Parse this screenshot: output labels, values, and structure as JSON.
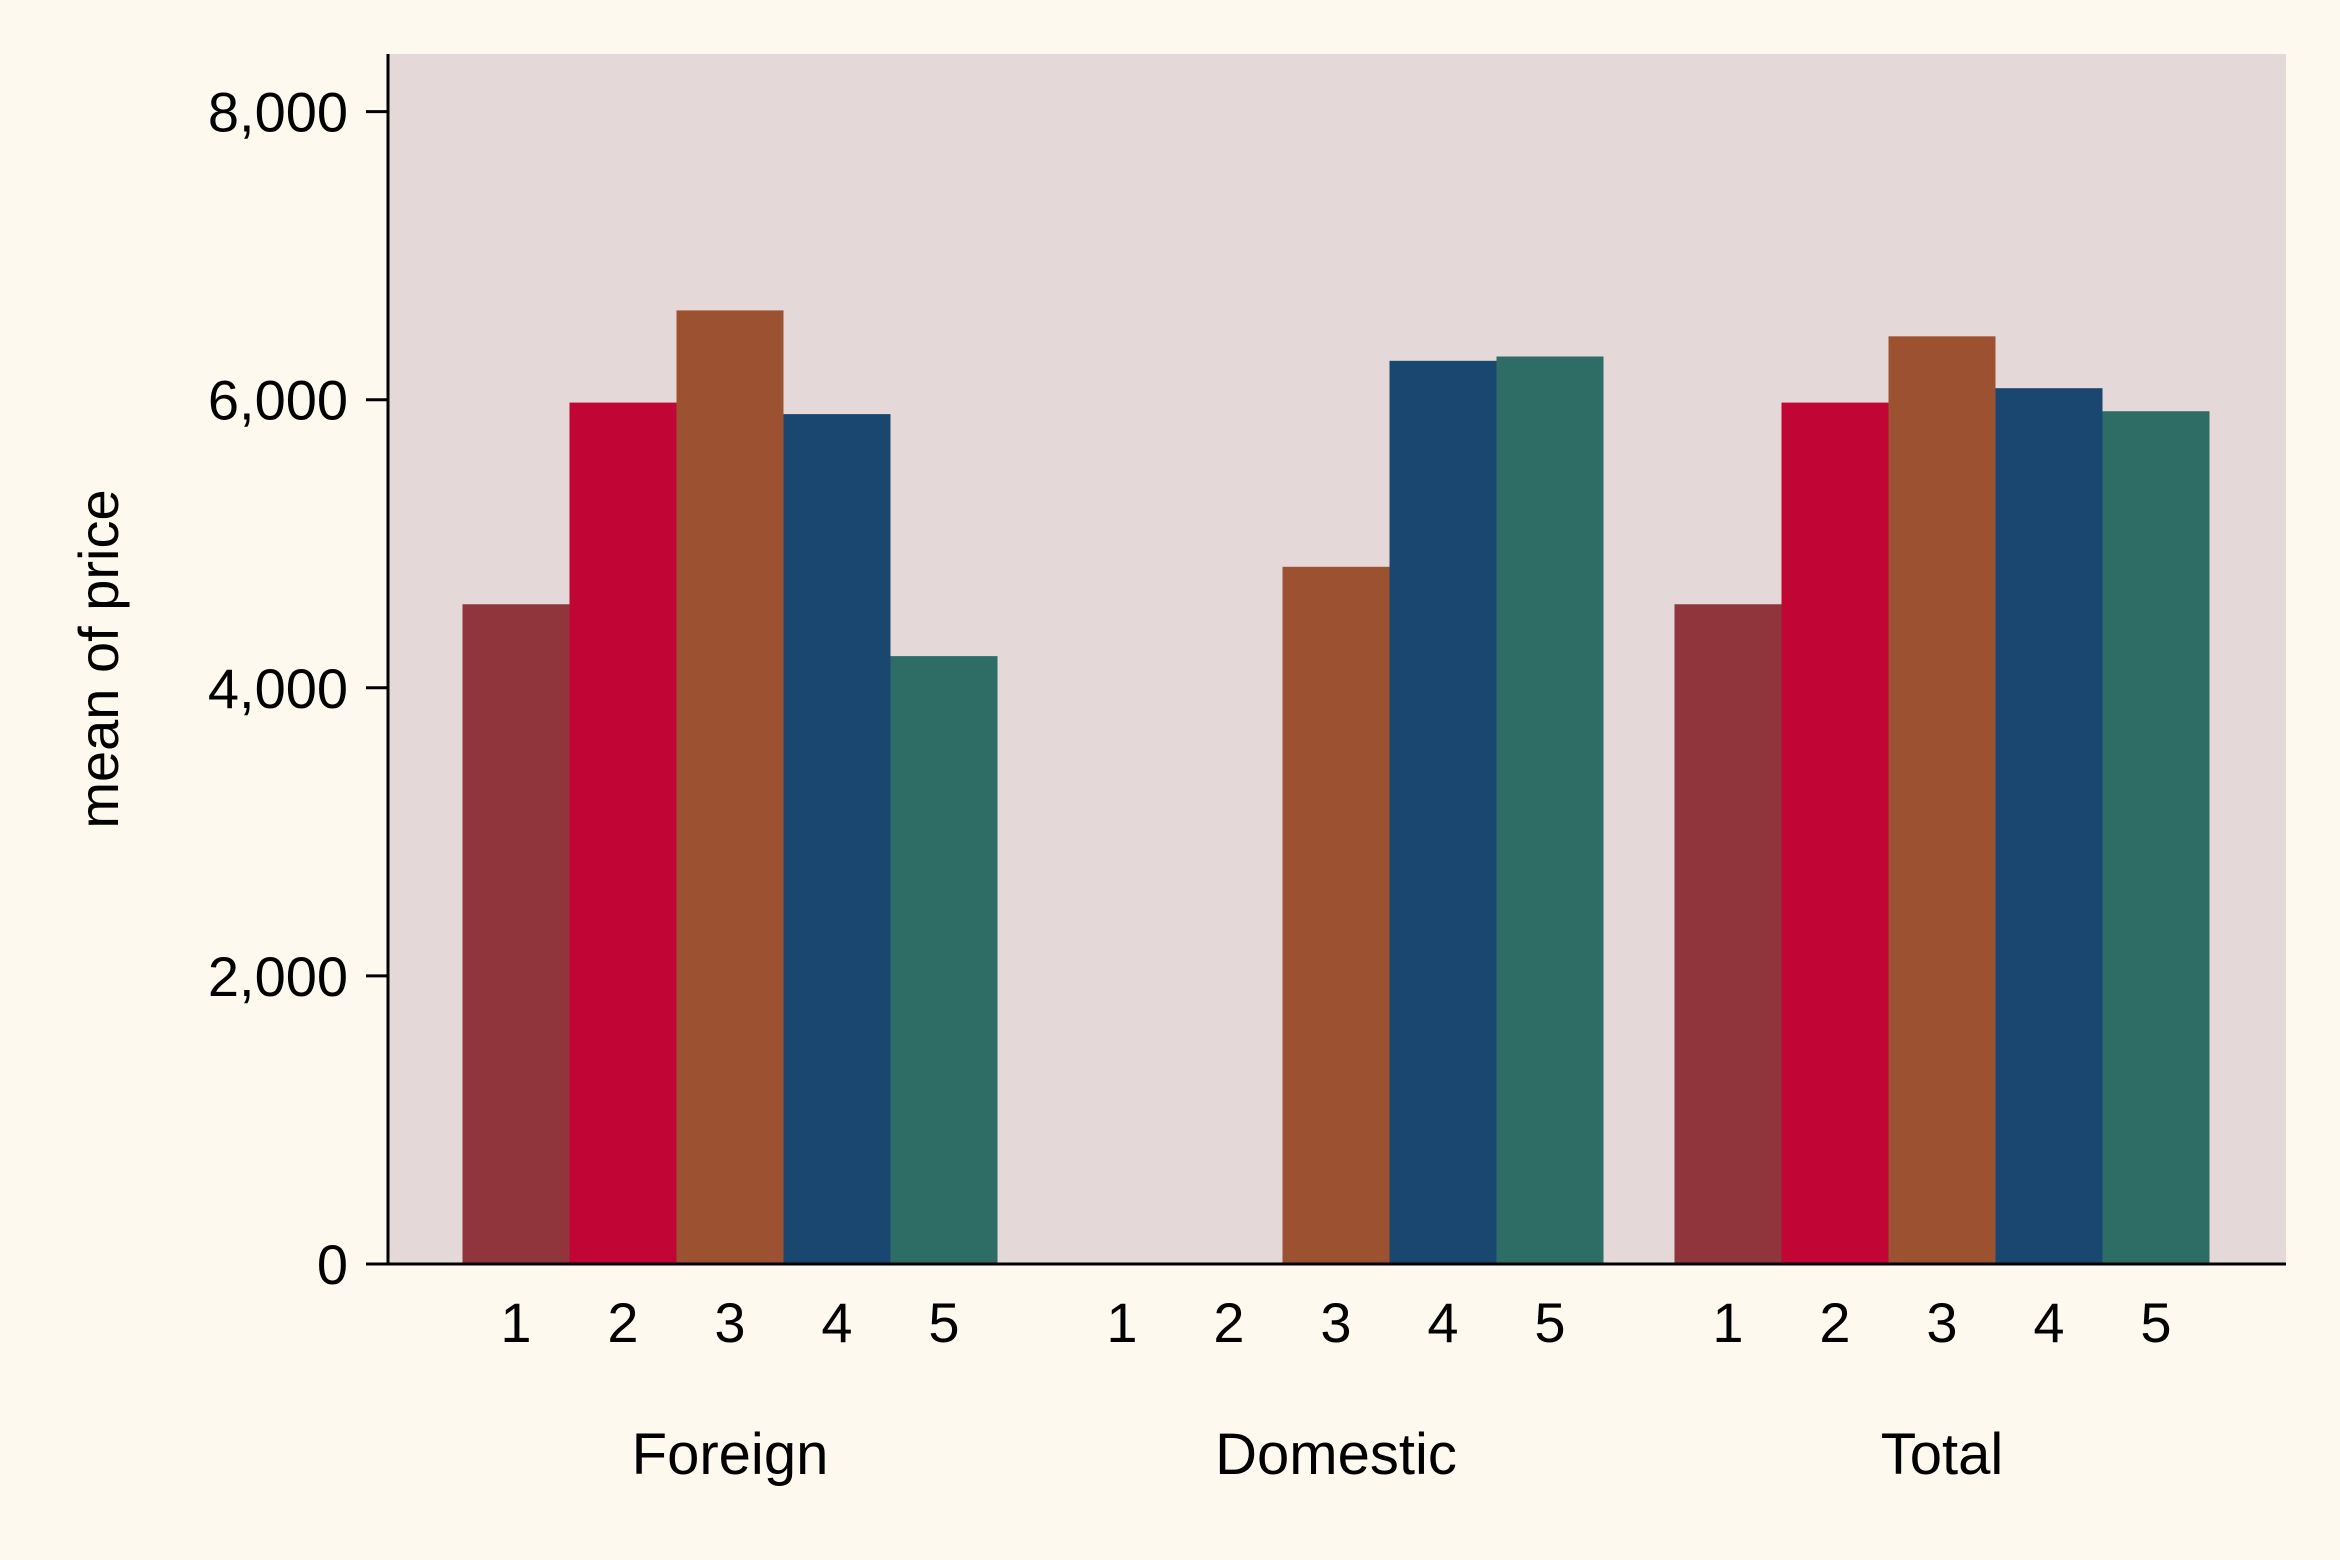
{
  "chart_data": {
    "type": "bar",
    "title": "",
    "xlabel": "",
    "ylabel": "mean of price",
    "ylim": [
      0,
      8400
    ],
    "yticks": [
      0,
      2000,
      4000,
      6000,
      8000
    ],
    "ytick_labels": [
      "0",
      "2,000",
      "4,000",
      "6,000",
      "8,000"
    ],
    "grid": false,
    "legend": false,
    "groups": [
      "Foreign",
      "Domestic",
      "Total"
    ],
    "categories": [
      "1",
      "2",
      "3",
      "4",
      "5"
    ],
    "series": [
      {
        "group": "Foreign",
        "values": [
          4580,
          5980,
          6620,
          5900,
          4220
        ]
      },
      {
        "group": "Domestic",
        "values": [
          null,
          null,
          4840,
          6270,
          6300
        ]
      },
      {
        "group": "Total",
        "values": [
          4580,
          5980,
          6440,
          6080,
          5920
        ]
      }
    ],
    "colors": [
      "#90353b",
      "#c10534",
      "#9c5230",
      "#1a476f",
      "#2d6d66"
    ],
    "plot_background": "#e4d9d8",
    "page_background": "#fdf9ef"
  }
}
